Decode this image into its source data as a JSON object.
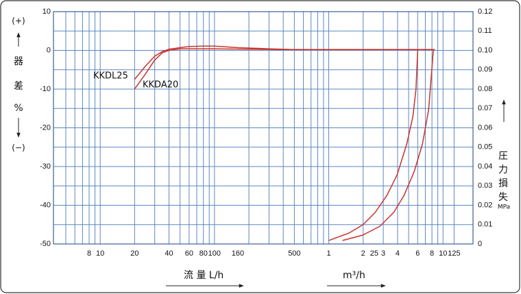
{
  "chart_data": {
    "type": "line",
    "y_label_top": "(+)",
    "y_label_chars": [
      "器",
      "差",
      "%"
    ],
    "y_label_bottom": "(−)",
    "y2_label_chars": [
      "圧",
      "力",
      "損",
      "失"
    ],
    "y2_unit": "MPa",
    "x_label": "流 量 L/h",
    "x2_label": "m³/h",
    "log_x": true,
    "grid": true,
    "xlim": [
      3.9,
      18300
    ],
    "xticks": [
      8,
      10,
      20,
      40,
      60,
      80,
      100,
      160,
      500,
      {
        "value": 1000,
        "label": "1"
      },
      {
        "value": 2000,
        "label": "2"
      },
      {
        "value": 2500,
        "label": "25"
      },
      {
        "value": 3000,
        "label": "3"
      },
      {
        "value": 4000,
        "label": "4"
      },
      {
        "value": 6000,
        "label": "6"
      },
      {
        "value": 8000,
        "label": "8"
      },
      {
        "value": 10000,
        "label": "10"
      },
      {
        "value": 12500,
        "label": "125"
      }
    ],
    "xminor_ticks": [
      5,
      6,
      7,
      8,
      9,
      10,
      20,
      30,
      40,
      50,
      60,
      70,
      80,
      90,
      100,
      200,
      300,
      400,
      500,
      600,
      700,
      800,
      900,
      1000,
      2000,
      3000,
      4000,
      5000,
      6000,
      7000,
      8000,
      9000,
      10000,
      12500
    ],
    "ylim": [
      -50,
      10
    ],
    "yticks": [
      10,
      0,
      -10,
      -20,
      -30,
      -40,
      -50
    ],
    "y2lim": [
      0,
      0.12
    ],
    "y2ticks": [
      0.12,
      0.11,
      {
        "value": 0.1,
        "label": "0.10"
      },
      0.09,
      0.08,
      0.07,
      0.06,
      0.05,
      0.04,
      0.03,
      0.02,
      0.01,
      0
    ],
    "series": [
      {
        "name": "KKDL25",
        "color": "#c8312b",
        "x": [
          20,
          25,
          30,
          35,
          40,
          50,
          60,
          80,
          100,
          160,
          300,
          500,
          1000,
          3000,
          6000,
          8500
        ],
        "values": [
          -7.5,
          -4,
          -1.5,
          -0.3,
          0.3,
          0.7,
          1,
          1.1,
          1.1,
          0.7,
          0.4,
          0.2,
          0.2,
          0.2,
          0.2,
          0.2
        ]
      },
      {
        "name": "KKDA20",
        "color": "#c8312b",
        "x": [
          20,
          25,
          30,
          35,
          40,
          50,
          60,
          100,
          200,
          500,
          1000,
          3000,
          6000,
          8500
        ],
        "values": [
          -10,
          -6,
          -2.5,
          -0.6,
          0,
          0.4,
          0.4,
          0.4,
          0.3,
          0.2,
          0.2,
          0.2,
          0.2,
          0.2
        ]
      },
      {
        "color": "#c8312b",
        "axis": "y2",
        "x": [
          1000,
          1510,
          1990,
          2550,
          3230,
          3970,
          4820,
          5450,
          5800,
          6000
        ],
        "values": [
          0.0018,
          0.0057,
          0.0099,
          0.0163,
          0.0251,
          0.0358,
          0.0517,
          0.0658,
          0.08,
          0.1
        ]
      },
      {
        "color": "#c8312b",
        "axis": "y2",
        "x": [
          1320,
          1990,
          2810,
          3700,
          4560,
          5600,
          6610,
          7490,
          8230
        ],
        "values": [
          0.0018,
          0.0046,
          0.0092,
          0.0163,
          0.0251,
          0.0375,
          0.0517,
          0.0694,
          0.1
        ]
      }
    ]
  }
}
